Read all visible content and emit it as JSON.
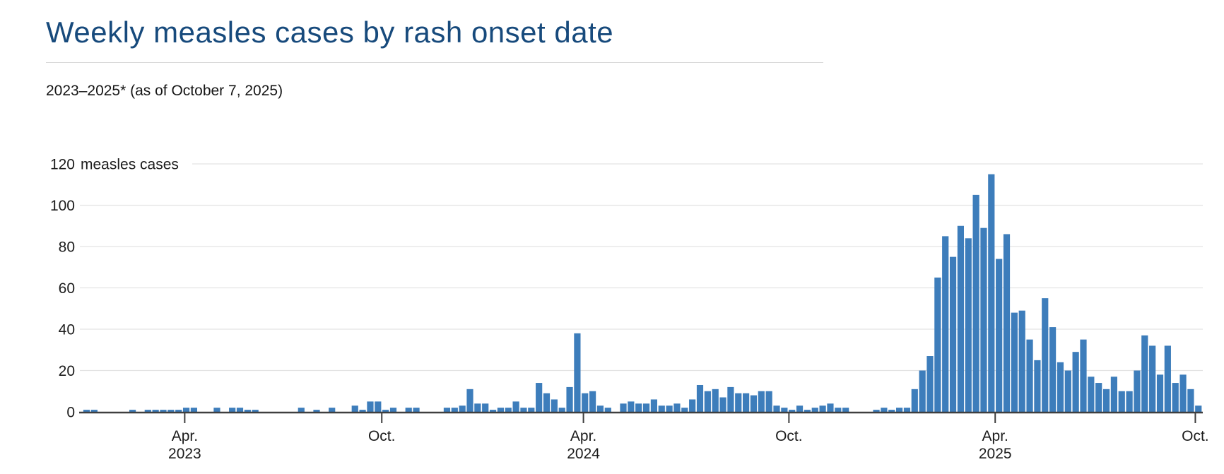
{
  "header": {
    "title": "Weekly measles cases by rash onset date",
    "subtitle": "2023–2025* (as of October 7, 2025)"
  },
  "chart_data": {
    "type": "bar",
    "title": "Weekly measles cases by rash onset date",
    "subtitle": "2023–2025* (as of October 7, 2025)",
    "ylabel": "measles cases",
    "xlabel": "",
    "ylim": [
      0,
      120
    ],
    "grid": true,
    "legend": "none",
    "bar_color": "#3d7dbb",
    "grid_color": "#e3e3e3",
    "axis_color": "#3f3f3f",
    "text_color": "#1c1c1c",
    "y_ticks": [
      0,
      20,
      40,
      60,
      80,
      100
    ],
    "y_top_tick": {
      "value": 120,
      "label": "120",
      "suffix": "measles cases"
    },
    "x_unit": "week of rash onset",
    "x_ticks": [
      {
        "week": 12.8,
        "line1": "Apr.",
        "line2": "2023"
      },
      {
        "week": 38.5,
        "line1": "Oct.",
        "line2": ""
      },
      {
        "week": 64.8,
        "line1": "Apr.",
        "line2": "2024"
      },
      {
        "week": 91.6,
        "line1": "Oct.",
        "line2": ""
      },
      {
        "week": 118.5,
        "line1": "Apr.",
        "line2": "2025"
      },
      {
        "week": 144.6,
        "line1": "Oct.",
        "line2": ""
      }
    ],
    "weekly_values": [
      1,
      1,
      0,
      0,
      0,
      0,
      1,
      0,
      1,
      1,
      1,
      1,
      1,
      2,
      2,
      0,
      0,
      2,
      0,
      2,
      2,
      1,
      1,
      0,
      0,
      0,
      0,
      0,
      2,
      0,
      1,
      0,
      2,
      0,
      0,
      3,
      1,
      5,
      5,
      1,
      2,
      0,
      2,
      2,
      0,
      0,
      0,
      2,
      2,
      3,
      11,
      4,
      4,
      1,
      2,
      2,
      5,
      2,
      2,
      14,
      9,
      6,
      2,
      12,
      38,
      9,
      10,
      3,
      2,
      0,
      4,
      5,
      4,
      4,
      6,
      3,
      3,
      4,
      2,
      6,
      13,
      10,
      11,
      7,
      12,
      9,
      9,
      8,
      10,
      10,
      3,
      2,
      1,
      3,
      1,
      2,
      3,
      4,
      2,
      2,
      0,
      0,
      0,
      1,
      2,
      1,
      2,
      2,
      11,
      20,
      27,
      65,
      85,
      75,
      90,
      84,
      105,
      89,
      115,
      74,
      86,
      48,
      49,
      35,
      25,
      55,
      41,
      24,
      20,
      29,
      35,
      17,
      14,
      11,
      17,
      10,
      10,
      20,
      37,
      32,
      18,
      32,
      14,
      18,
      11,
      3
    ]
  }
}
